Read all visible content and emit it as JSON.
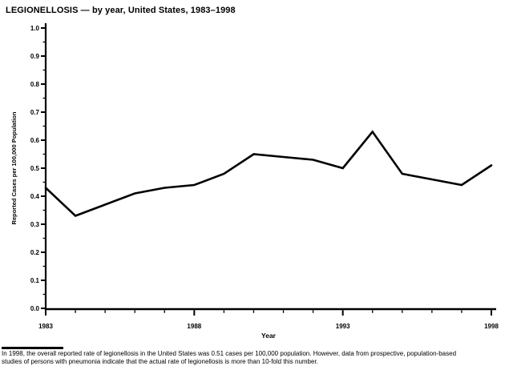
{
  "header": {
    "title": "LEGIONELLOSIS — by year, United States, 1983–1998"
  },
  "chart_data": {
    "type": "line",
    "title": "LEGIONELLOSIS — by year, United States, 1983–1998",
    "xlabel": "Year",
    "ylabel": "Reported Cases per 100,000 Population",
    "x": [
      1983,
      1984,
      1985,
      1986,
      1987,
      1988,
      1989,
      1990,
      1991,
      1992,
      1993,
      1994,
      1995,
      1996,
      1997,
      1998
    ],
    "values": [
      0.43,
      0.33,
      0.37,
      0.41,
      0.43,
      0.44,
      0.48,
      0.55,
      0.54,
      0.53,
      0.5,
      0.63,
      0.48,
      0.46,
      0.44,
      0.51
    ],
    "xlim": [
      1983,
      1998
    ],
    "ylim": [
      0.0,
      1.0
    ],
    "x_labeled_ticks": [
      1983,
      1988,
      1993,
      1998
    ],
    "y_major_tick_step": 0.1,
    "y_minor_tick_step": 0.05,
    "y_tick_label_decimals": 1,
    "grid": false,
    "legend": "none",
    "line_color": "#000000",
    "axis_color": "#000000",
    "background": "#ffffff"
  },
  "footnote": {
    "lines": [
      "In 1998, the overall reported rate of legionellosis in the United States was 0.51 cases per 100,000 population. However, data from prospective, population-based",
      "studies of persons with pneumonia indicate that the actual rate of legionellosis is more than 10-fold this number."
    ]
  }
}
